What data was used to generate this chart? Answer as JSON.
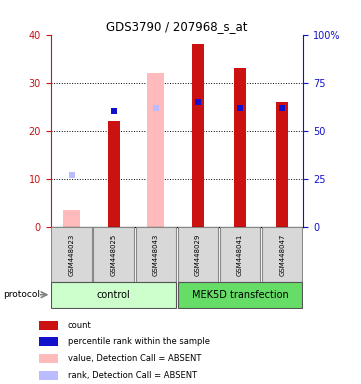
{
  "title": "GDS3790 / 207968_s_at",
  "samples": [
    "GSM448023",
    "GSM448025",
    "GSM448043",
    "GSM448029",
    "GSM448041",
    "GSM448047"
  ],
  "count_values": [
    0,
    22,
    0,
    38,
    33,
    26
  ],
  "rank_values_pct": [
    0,
    60,
    0,
    65,
    62,
    62
  ],
  "absent_value": [
    3.5,
    0,
    32,
    0,
    0,
    0
  ],
  "absent_rank_pct": [
    27,
    0,
    62,
    0,
    0,
    0
  ],
  "count_color": "#cc1111",
  "rank_color": "#1111cc",
  "absent_value_color": "#ffbbbb",
  "absent_rank_color": "#bbbbff",
  "ylim_left": [
    0,
    40
  ],
  "ylim_right": [
    0,
    100
  ],
  "yticks_left": [
    0,
    10,
    20,
    30,
    40
  ],
  "yticks_right": [
    0,
    25,
    50,
    75,
    100
  ],
  "yticklabels_right": [
    "0",
    "25",
    "50",
    "75",
    "100%"
  ],
  "group_colors": {
    "control": "#ccffcc",
    "MEK5D transfection": "#66dd66"
  },
  "bar_width": 0.28,
  "absent_bar_width": 0.4,
  "protocol_label": "protocol",
  "legend_items": [
    {
      "label": "count",
      "color": "#cc1111"
    },
    {
      "label": "percentile rank within the sample",
      "color": "#1111cc"
    },
    {
      "label": "value, Detection Call = ABSENT",
      "color": "#ffbbbb"
    },
    {
      "label": "rank, Detection Call = ABSENT",
      "color": "#bbbbff"
    }
  ]
}
